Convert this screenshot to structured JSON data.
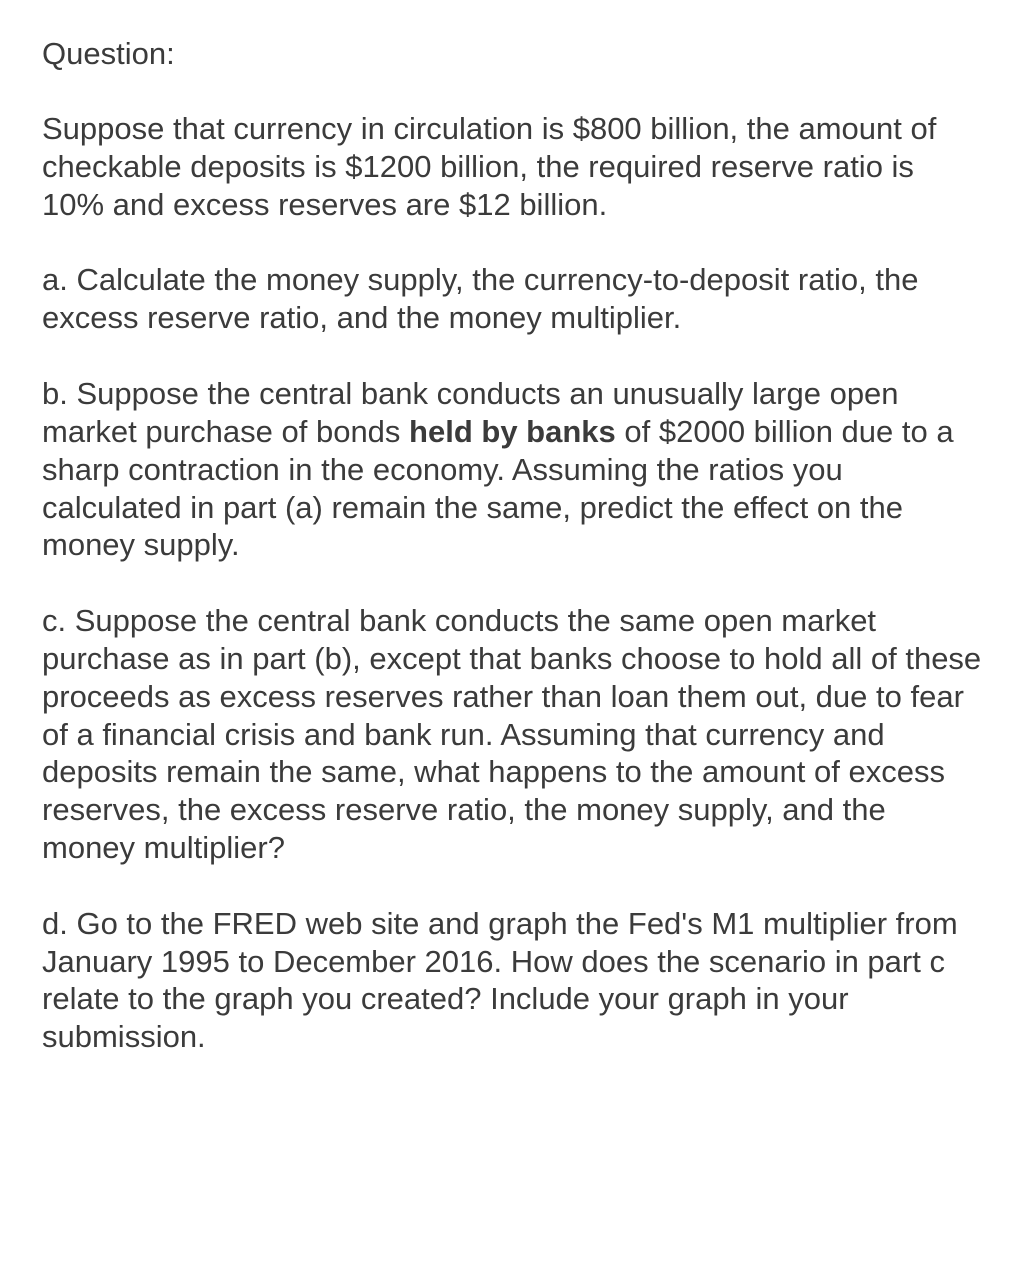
{
  "text_color": "#3b3b3b",
  "background_color": "#ffffff",
  "font_family": "Helvetica Neue, Helvetica, Arial, sans-serif",
  "heading_fontsize": 31,
  "body_fontsize": 31,
  "line_height": 1.22,
  "heading": "Question:",
  "intro": "Suppose that currency in circulation is $800 billion, the amount of checkable deposits is $1200 billion, the required reserve ratio is 10% and excess reserves are $12 billion.",
  "part_a": "a. Calculate the money supply, the currency-to-deposit ratio, the excess reserve ratio, and the money multiplier.",
  "part_b_pre": "b. Suppose the central bank conducts an unusually large open market purchase of bonds ",
  "part_b_bold": "held by banks",
  "part_b_post": " of $2000 billion due to a sharp contraction in the economy. Assuming the ratios you calculated in part (a) remain the same, predict the effect on the money supply.",
  "part_c": "c. Suppose the central bank conducts the same open market purchase as in part (b), except that banks choose to hold all of these proceeds as excess reserves rather than loan them out, due to fear of a financial crisis and bank run. Assuming that currency and deposits remain the same, what happens to the amount of excess reserves, the excess reserve ratio, the money supply, and the money multiplier?",
  "part_d": "d. Go to the FRED web site and graph the Fed's M1 multiplier from January 1995 to December 2016. How does the scenario in part c relate to the graph you created? Include your graph in your submission."
}
